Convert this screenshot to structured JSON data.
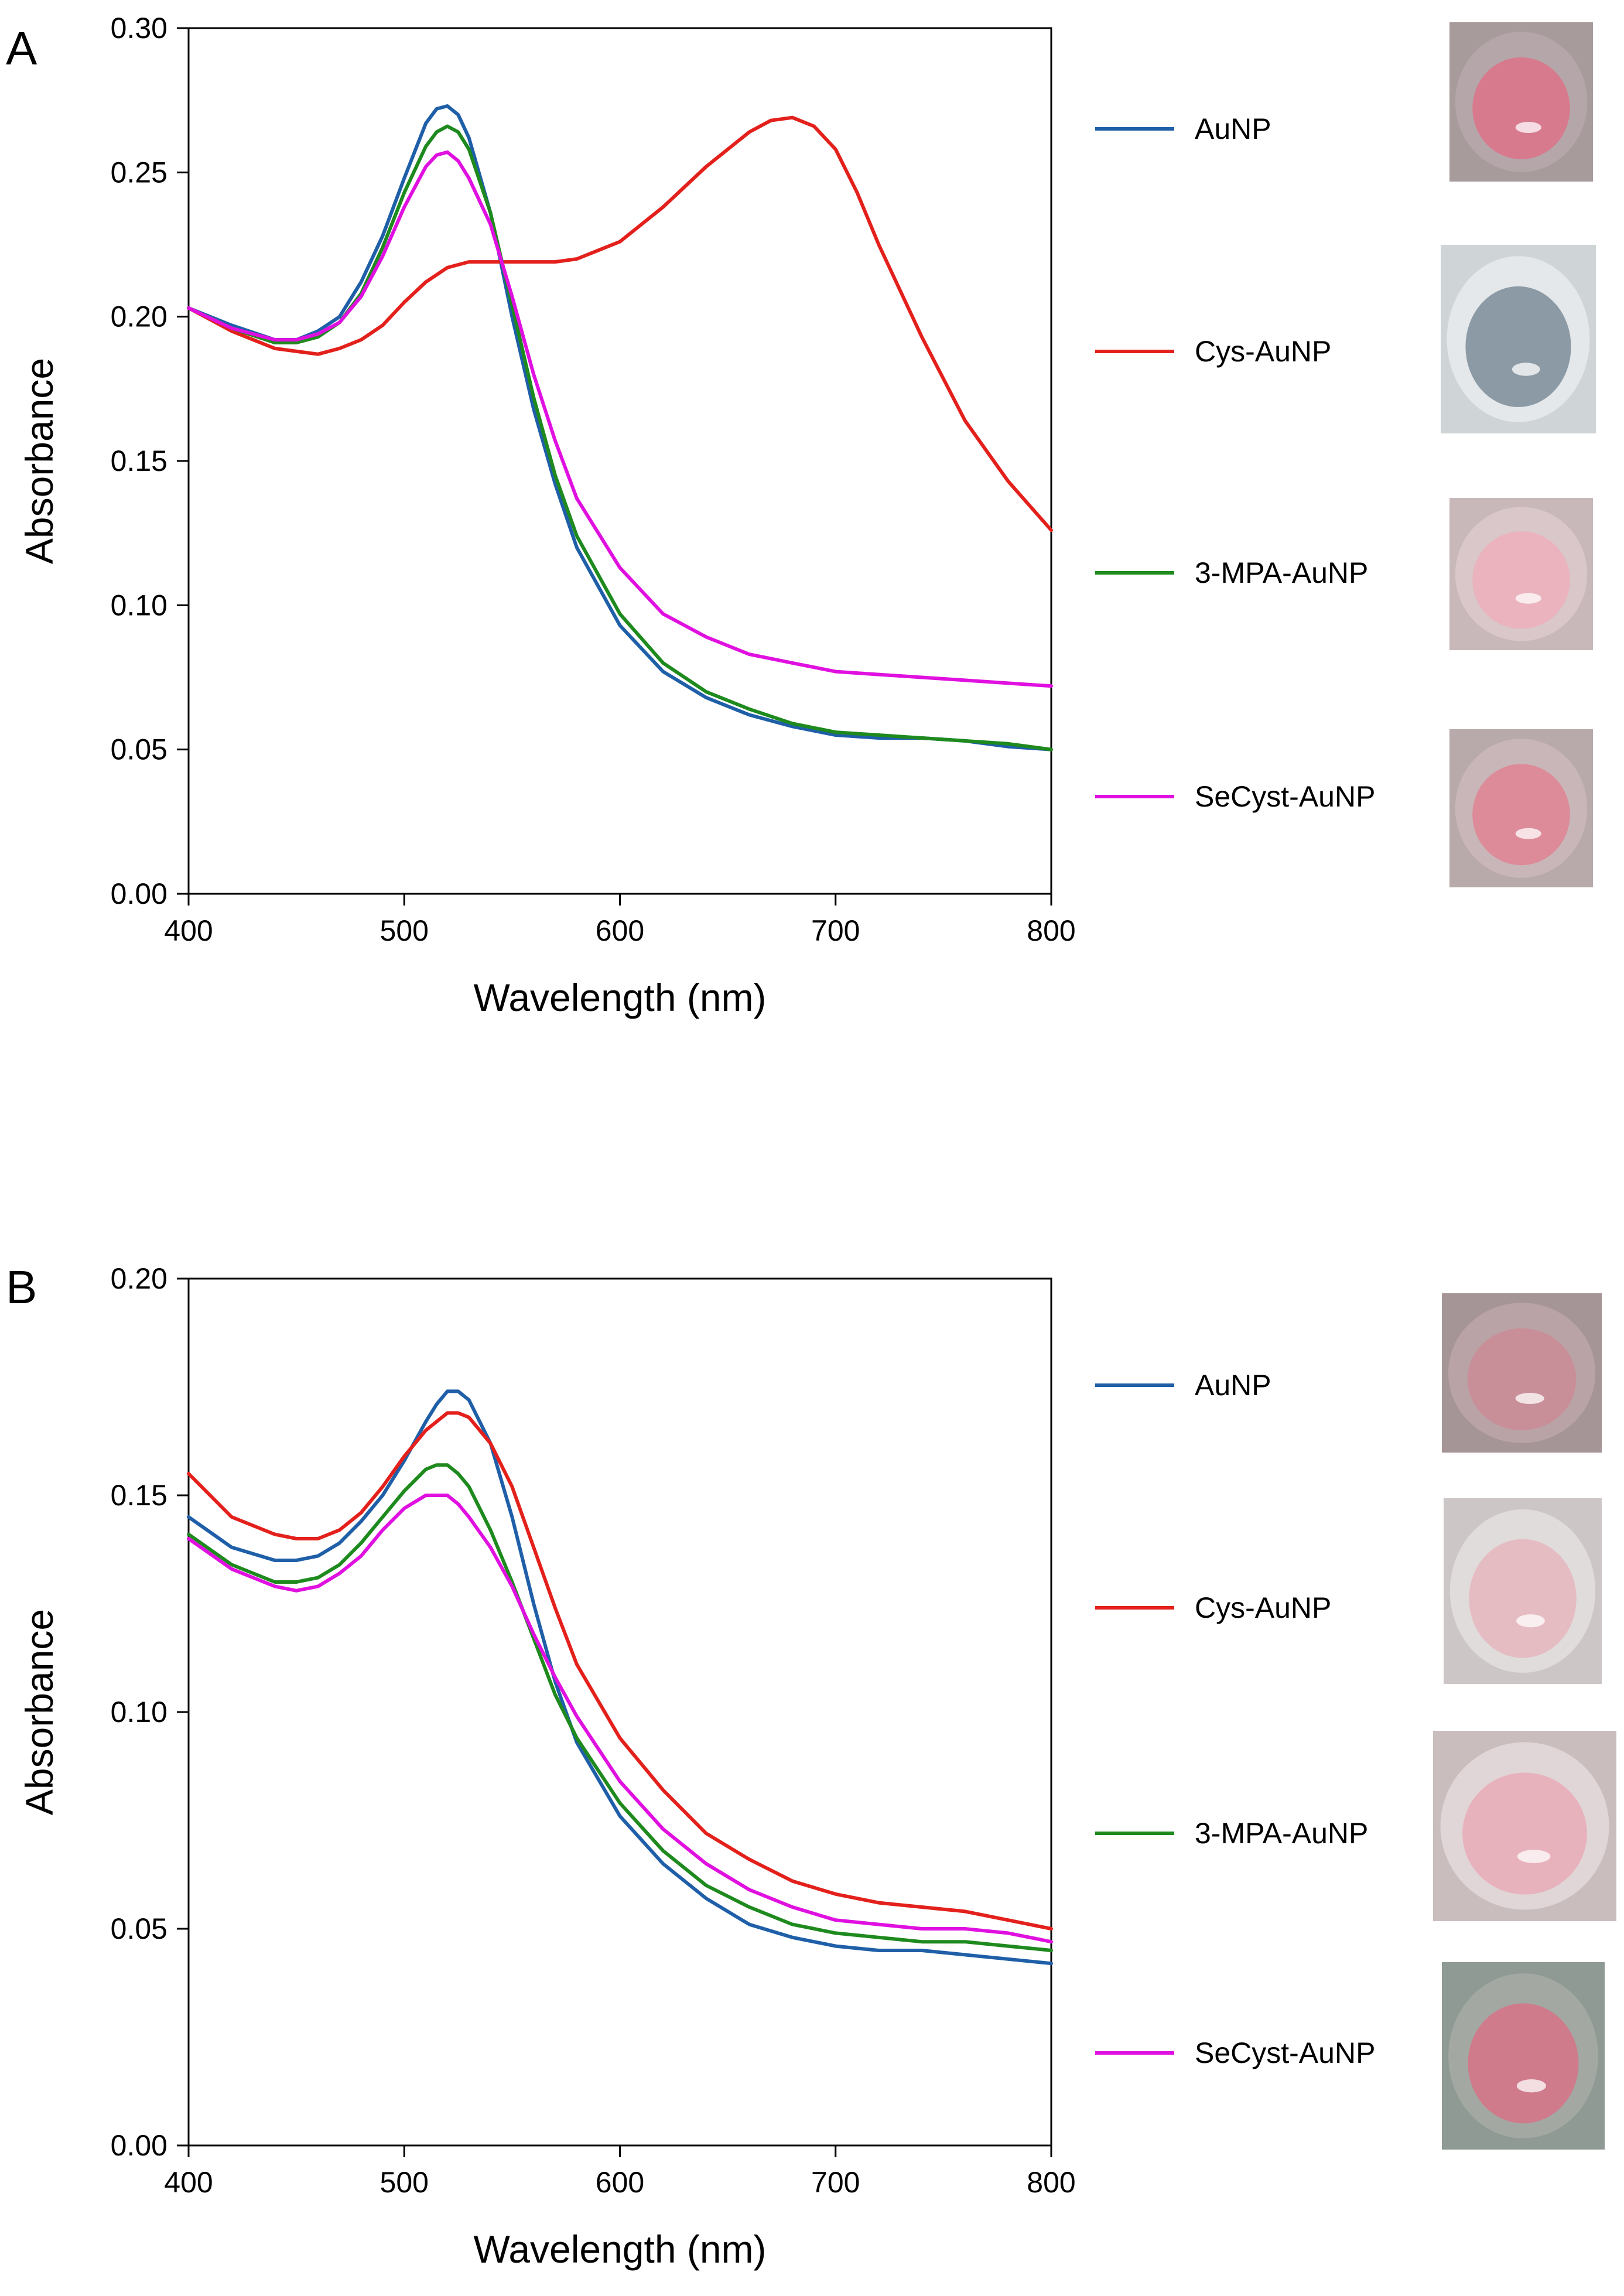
{
  "chart_data": [
    {
      "type": "line",
      "panel": "A",
      "xlabel": "Wavelength (nm)",
      "ylabel": "Absorbance",
      "xlim": [
        400,
        800
      ],
      "ylim": [
        0.0,
        0.3
      ],
      "xticks": [
        400,
        500,
        600,
        700,
        800
      ],
      "yticks": [
        0.0,
        0.05,
        0.1,
        0.15,
        0.2,
        0.25,
        0.3
      ],
      "yticklabels": [
        "0.00",
        "0.05",
        "0.10",
        "0.15",
        "0.20",
        "0.25",
        "0.30"
      ],
      "grid": false,
      "legend_position": "right",
      "series": [
        {
          "name": "AuNP",
          "color": "#1f5fa8",
          "x": [
            400,
            420,
            440,
            450,
            460,
            470,
            480,
            490,
            500,
            510,
            515,
            520,
            525,
            530,
            540,
            550,
            560,
            570,
            580,
            600,
            620,
            640,
            660,
            680,
            700,
            720,
            740,
            760,
            780,
            800
          ],
          "y": [
            0.203,
            0.197,
            0.192,
            0.192,
            0.195,
            0.2,
            0.212,
            0.228,
            0.248,
            0.267,
            0.272,
            0.273,
            0.27,
            0.262,
            0.236,
            0.2,
            0.168,
            0.142,
            0.12,
            0.093,
            0.077,
            0.068,
            0.062,
            0.058,
            0.055,
            0.054,
            0.054,
            0.053,
            0.051,
            0.05
          ]
        },
        {
          "name": "Cys-AuNP",
          "color": "#e3201b",
          "x": [
            400,
            420,
            440,
            460,
            470,
            480,
            490,
            500,
            510,
            520,
            530,
            540,
            550,
            560,
            570,
            580,
            600,
            620,
            640,
            660,
            670,
            680,
            690,
            700,
            710,
            720,
            740,
            760,
            780,
            800
          ],
          "y": [
            0.203,
            0.195,
            0.189,
            0.187,
            0.189,
            0.192,
            0.197,
            0.205,
            0.212,
            0.217,
            0.219,
            0.219,
            0.219,
            0.219,
            0.219,
            0.22,
            0.226,
            0.238,
            0.252,
            0.264,
            0.268,
            0.269,
            0.266,
            0.258,
            0.243,
            0.225,
            0.193,
            0.164,
            0.143,
            0.126
          ]
        },
        {
          "name": "3-MPA-AuNP",
          "color": "#1e8a1e",
          "x": [
            400,
            420,
            440,
            450,
            460,
            470,
            480,
            490,
            500,
            510,
            515,
            520,
            525,
            530,
            540,
            550,
            560,
            570,
            580,
            600,
            620,
            640,
            660,
            680,
            700,
            720,
            740,
            760,
            780,
            800
          ],
          "y": [
            0.203,
            0.196,
            0.191,
            0.191,
            0.193,
            0.198,
            0.208,
            0.224,
            0.243,
            0.259,
            0.264,
            0.266,
            0.264,
            0.258,
            0.236,
            0.204,
            0.172,
            0.145,
            0.124,
            0.097,
            0.08,
            0.07,
            0.064,
            0.059,
            0.056,
            0.055,
            0.054,
            0.053,
            0.052,
            0.05
          ]
        },
        {
          "name": "SeCyst-AuNP",
          "color": "#e010e0",
          "x": [
            400,
            420,
            440,
            450,
            460,
            470,
            480,
            490,
            500,
            510,
            515,
            520,
            525,
            530,
            540,
            550,
            560,
            570,
            580,
            600,
            620,
            640,
            660,
            680,
            700,
            720,
            740,
            760,
            780,
            800
          ],
          "y": [
            0.203,
            0.196,
            0.192,
            0.192,
            0.194,
            0.198,
            0.207,
            0.221,
            0.238,
            0.252,
            0.256,
            0.257,
            0.254,
            0.248,
            0.232,
            0.207,
            0.18,
            0.157,
            0.137,
            0.113,
            0.097,
            0.089,
            0.083,
            0.08,
            0.077,
            0.076,
            0.075,
            0.074,
            0.073,
            0.072
          ]
        }
      ]
    },
    {
      "type": "line",
      "panel": "B",
      "xlabel": "Wavelength (nm)",
      "ylabel": "Absorbance",
      "xlim": [
        400,
        800
      ],
      "ylim": [
        0.0,
        0.2
      ],
      "xticks": [
        400,
        500,
        600,
        700,
        800
      ],
      "yticks": [
        0.0,
        0.05,
        0.1,
        0.15,
        0.2
      ],
      "yticklabels": [
        "0.00",
        "0.05",
        "0.10",
        "0.15",
        "0.20"
      ],
      "grid": false,
      "legend_position": "right",
      "series": [
        {
          "name": "AuNP",
          "color": "#1f5fa8",
          "x": [
            400,
            420,
            440,
            450,
            460,
            470,
            480,
            490,
            500,
            510,
            515,
            520,
            525,
            530,
            540,
            550,
            560,
            570,
            580,
            600,
            620,
            640,
            660,
            680,
            700,
            720,
            740,
            760,
            780,
            800
          ],
          "y": [
            0.145,
            0.138,
            0.135,
            0.135,
            0.136,
            0.139,
            0.144,
            0.15,
            0.158,
            0.167,
            0.171,
            0.174,
            0.174,
            0.172,
            0.162,
            0.145,
            0.125,
            0.107,
            0.093,
            0.076,
            0.065,
            0.057,
            0.051,
            0.048,
            0.046,
            0.045,
            0.045,
            0.044,
            0.043,
            0.042
          ]
        },
        {
          "name": "Cys-AuNP",
          "color": "#e3201b",
          "x": [
            400,
            420,
            440,
            450,
            460,
            470,
            480,
            490,
            500,
            510,
            515,
            520,
            525,
            530,
            540,
            550,
            560,
            570,
            580,
            600,
            620,
            640,
            660,
            680,
            700,
            720,
            740,
            760,
            780,
            800
          ],
          "y": [
            0.155,
            0.145,
            0.141,
            0.14,
            0.14,
            0.142,
            0.146,
            0.152,
            0.159,
            0.165,
            0.167,
            0.169,
            0.169,
            0.168,
            0.162,
            0.152,
            0.138,
            0.124,
            0.111,
            0.094,
            0.082,
            0.072,
            0.066,
            0.061,
            0.058,
            0.056,
            0.055,
            0.054,
            0.052,
            0.05
          ]
        },
        {
          "name": "3-MPA-AuNP",
          "color": "#1e8a1e",
          "x": [
            400,
            420,
            440,
            450,
            460,
            470,
            480,
            490,
            500,
            510,
            515,
            520,
            525,
            530,
            540,
            550,
            560,
            570,
            580,
            600,
            620,
            640,
            660,
            680,
            700,
            720,
            740,
            760,
            780,
            800
          ],
          "y": [
            0.141,
            0.134,
            0.13,
            0.13,
            0.131,
            0.134,
            0.139,
            0.145,
            0.151,
            0.156,
            0.157,
            0.157,
            0.155,
            0.152,
            0.142,
            0.13,
            0.117,
            0.104,
            0.094,
            0.079,
            0.068,
            0.06,
            0.055,
            0.051,
            0.049,
            0.048,
            0.047,
            0.047,
            0.046,
            0.045
          ]
        },
        {
          "name": "SeCyst-AuNP",
          "color": "#e010e0",
          "x": [
            400,
            420,
            440,
            450,
            460,
            470,
            480,
            490,
            500,
            510,
            515,
            520,
            525,
            530,
            540,
            550,
            560,
            570,
            580,
            600,
            620,
            640,
            660,
            680,
            700,
            720,
            740,
            760,
            780,
            800
          ],
          "y": [
            0.14,
            0.133,
            0.129,
            0.128,
            0.129,
            0.132,
            0.136,
            0.142,
            0.147,
            0.15,
            0.15,
            0.15,
            0.148,
            0.145,
            0.138,
            0.129,
            0.118,
            0.108,
            0.099,
            0.084,
            0.073,
            0.065,
            0.059,
            0.055,
            0.052,
            0.051,
            0.05,
            0.05,
            0.049,
            0.047
          ]
        }
      ]
    }
  ],
  "panels": [
    {
      "label": "A",
      "legend": [
        "AuNP",
        "Cys-AuNP",
        "3-MPA-AuNP",
        "SeCyst-AuNP"
      ],
      "cuvettes": [
        {
          "label": "AuNP",
          "liquid": "#d77a8e",
          "rim": "#b5a7a9",
          "bg": "#a89b9c"
        },
        {
          "label": "Cys-AuNP",
          "liquid": "#8c9aa6",
          "rim": "#e4e8ea",
          "bg": "#cfd4d6"
        },
        {
          "label": "3-MPA-AuNP",
          "liquid": "#eab3bd",
          "rim": "#d9c7c9",
          "bg": "#c8b8b9"
        },
        {
          "label": "SeCyst-AuNP",
          "liquid": "#dd8a99",
          "rim": "#c9b6b8",
          "bg": "#b8a9aa"
        }
      ]
    },
    {
      "label": "B",
      "legend": [
        "AuNP",
        "Cys-AuNP",
        "3-MPA-AuNP",
        "SeCyst-AuNP"
      ],
      "cuvettes": [
        {
          "label": "AuNP",
          "liquid": "#c98f99",
          "rim": "#b9a3a6",
          "bg": "#a69597"
        },
        {
          "label": "Cys-AuNP",
          "liquid": "#e6bcc3",
          "rim": "#e0dcdc",
          "bg": "#cdc6c6"
        },
        {
          "label": "3-MPA-AuNP",
          "liquid": "#e8b2bd",
          "rim": "#e0d6d7",
          "bg": "#c9bdbe"
        },
        {
          "label": "SeCyst-AuNP",
          "liquid": "#cf7b8c",
          "rim": "#a3a8a2",
          "bg": "#8f9a94"
        }
      ]
    }
  ]
}
